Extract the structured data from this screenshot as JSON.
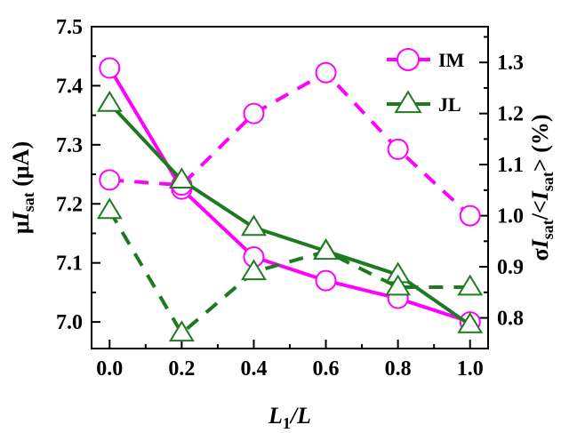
{
  "chart_data": {
    "type": "line",
    "x": [
      0.0,
      0.2,
      0.4,
      0.6,
      0.8,
      1.0
    ],
    "xlim": [
      -0.05,
      1.05
    ],
    "xticks": [
      "0.0",
      "0.2",
      "0.4",
      "0.6",
      "0.8",
      "1.0"
    ],
    "xlabel": {
      "main": "L",
      "sub": "1",
      "rest": "/L"
    },
    "left_axis": {
      "ylim": [
        6.955,
        7.5
      ],
      "ticks": [
        "7.0",
        "7.1",
        "7.2",
        "7.3",
        "7.4",
        "7.5"
      ],
      "label": {
        "pre": "μ",
        "main": "I",
        "sub": "sat",
        "post": " (μA)"
      }
    },
    "right_axis": {
      "ylim": [
        0.74,
        1.37
      ],
      "ticks": [
        "0.8",
        "0.9",
        "1.0",
        "1.1",
        "1.2",
        "1.3"
      ],
      "label": {
        "pre": "σ",
        "main": "I",
        "sub": "sat",
        "mid": "/<",
        "main2": "I",
        "sub2": "sat",
        "post": "> (%)"
      }
    },
    "series": [
      {
        "name": "IM",
        "axis": "left",
        "style": "solid",
        "marker": "circle",
        "color": "#ff00ff",
        "values": [
          7.43,
          7.225,
          7.11,
          7.07,
          7.04,
          7.0
        ]
      },
      {
        "name": "IM",
        "axis": "right",
        "style": "dashed",
        "marker": "circle",
        "color": "#ff00ff",
        "values": [
          1.07,
          1.06,
          1.2,
          1.28,
          1.13,
          1.0
        ]
      },
      {
        "name": "JL",
        "axis": "left",
        "style": "solid",
        "marker": "triangle",
        "color": "#1e7a1e",
        "values": [
          7.37,
          7.24,
          7.16,
          7.12,
          7.08,
          6.995
        ]
      },
      {
        "name": "JL",
        "axis": "right",
        "style": "dashed",
        "marker": "triangle",
        "color": "#1e7a1e",
        "values": [
          1.01,
          0.77,
          0.89,
          0.93,
          0.86,
          0.86
        ]
      }
    ],
    "legend": {
      "position": "top-right",
      "entries": [
        {
          "label": "IM",
          "marker": "circle",
          "color": "#ff00ff"
        },
        {
          "label": "JL",
          "marker": "triangle",
          "color": "#1e7a1e"
        }
      ]
    },
    "grid": false
  }
}
